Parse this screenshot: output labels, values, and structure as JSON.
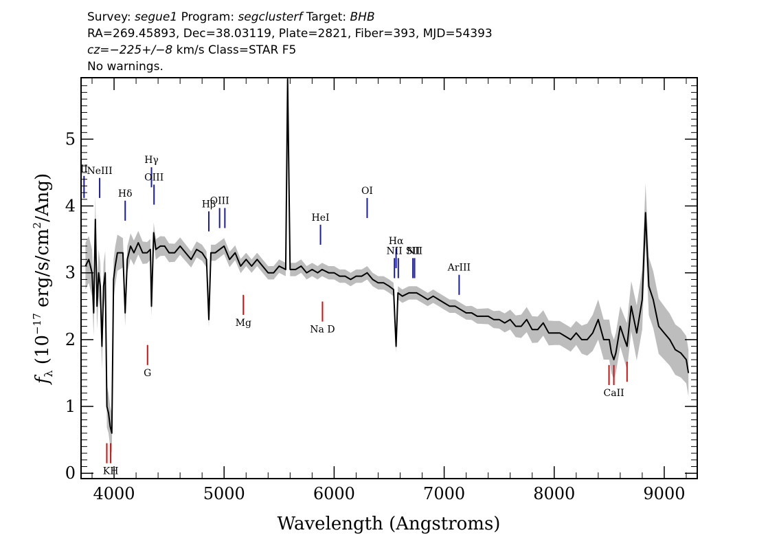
{
  "header": {
    "line1": {
      "survey_label": "Survey: ",
      "survey": "segue1",
      "program_label": " Program: ",
      "program": "segclusterf",
      "target_label": " Target: ",
      "target": "BHB"
    },
    "line2": "RA=269.45893, Dec=38.03119, Plate=2821, Fiber=393, MJD=54393",
    "line3": {
      "cz_label": "cz",
      "cz_value": "=−225+/−8",
      "cz_unit": " km/s Class=STAR F5"
    },
    "line4": "No warnings."
  },
  "colors": {
    "flux": "#000000",
    "error": "#bdbdbd",
    "emission": "#1a1aa8",
    "absorption": "#d01010",
    "axes": "#000000"
  },
  "chart_data": {
    "type": "line",
    "xlabel": "Wavelength (Angstroms)",
    "ylabel_symbol": "f",
    "ylabel_sub": "λ",
    "ylabel_rest": " (10",
    "ylabel_exp": "−17",
    "ylabel_unit": " erg/s/cm",
    "ylabel_exp2": "2",
    "ylabel_end": "/Ang)",
    "xlim": [
      3700,
      9300
    ],
    "ylim": [
      -0.08,
      5.92
    ],
    "grid": false,
    "x_ticks": [
      4000,
      5000,
      6000,
      7000,
      8000,
      9000
    ],
    "x_tick_labels": [
      "4000",
      "5000",
      "6000",
      "7000",
      "8000",
      "9000"
    ],
    "y_ticks": [
      0,
      1,
      2,
      3,
      4,
      5
    ],
    "y_tick_labels": [
      "0",
      "1",
      "2",
      "3",
      "4",
      "5"
    ],
    "series": [
      {
        "role": "flux",
        "x": [
          3740,
          3770,
          3800,
          3815,
          3830,
          3845,
          3860,
          3875,
          3890,
          3905,
          3920,
          3935,
          3950,
          3965,
          3980,
          3995,
          4010,
          4030,
          4050,
          4080,
          4101,
          4120,
          4150,
          4180,
          4220,
          4260,
          4300,
          4330,
          4340,
          4360,
          4380,
          4420,
          4460,
          4500,
          4550,
          4600,
          4650,
          4700,
          4750,
          4800,
          4840,
          4861,
          4880,
          4920,
          4960,
          5000,
          5050,
          5100,
          5150,
          5200,
          5250,
          5300,
          5350,
          5400,
          5450,
          5500,
          5560,
          5577,
          5600,
          5650,
          5700,
          5750,
          5800,
          5850,
          5890,
          5950,
          6000,
          6050,
          6100,
          6150,
          6200,
          6250,
          6300,
          6350,
          6400,
          6450,
          6500,
          6540,
          6563,
          6580,
          6620,
          6680,
          6750,
          6800,
          6850,
          6900,
          6950,
          7000,
          7050,
          7100,
          7150,
          7200,
          7250,
          7300,
          7350,
          7400,
          7450,
          7500,
          7550,
          7600,
          7650,
          7700,
          7750,
          7800,
          7850,
          7900,
          7950,
          8000,
          8050,
          8100,
          8150,
          8200,
          8250,
          8300,
          8350,
          8400,
          8450,
          8500,
          8520,
          8542,
          8560,
          8600,
          8640,
          8662,
          8700,
          8750,
          8800,
          8830,
          8860,
          8900,
          8950,
          9000,
          9050,
          9100,
          9150,
          9200,
          9220
        ],
        "y": [
          3.1,
          3.2,
          3.0,
          2.4,
          3.8,
          2.5,
          3.0,
          2.8,
          1.9,
          2.8,
          3.0,
          1.0,
          0.9,
          0.7,
          0.6,
          2.9,
          3.1,
          3.3,
          3.3,
          3.3,
          2.4,
          3.2,
          3.4,
          3.3,
          3.45,
          3.3,
          3.3,
          3.35,
          2.5,
          3.6,
          3.35,
          3.4,
          3.4,
          3.3,
          3.3,
          3.4,
          3.3,
          3.2,
          3.35,
          3.3,
          3.2,
          2.3,
          3.3,
          3.3,
          3.35,
          3.4,
          3.2,
          3.3,
          3.1,
          3.2,
          3.1,
          3.2,
          3.1,
          3.0,
          3.0,
          3.1,
          3.05,
          5.9,
          3.05,
          3.05,
          3.1,
          3.0,
          3.05,
          3.0,
          3.05,
          3.0,
          3.0,
          2.95,
          2.95,
          2.9,
          2.95,
          2.95,
          3.0,
          2.9,
          2.85,
          2.85,
          2.8,
          2.75,
          1.9,
          2.7,
          2.65,
          2.7,
          2.7,
          2.65,
          2.6,
          2.65,
          2.6,
          2.55,
          2.5,
          2.5,
          2.45,
          2.4,
          2.4,
          2.35,
          2.35,
          2.35,
          2.3,
          2.3,
          2.25,
          2.3,
          2.2,
          2.2,
          2.3,
          2.15,
          2.15,
          2.25,
          2.1,
          2.1,
          2.1,
          2.05,
          2.0,
          2.1,
          2.0,
          2.0,
          2.1,
          2.3,
          2.0,
          2.0,
          1.8,
          1.7,
          1.8,
          2.2,
          2.0,
          1.9,
          2.5,
          2.1,
          2.6,
          3.9,
          2.8,
          2.6,
          2.2,
          2.1,
          2.0,
          1.85,
          1.8,
          1.7,
          1.5
        ]
      },
      {
        "role": "error",
        "x": [
          3740,
          3800,
          3850,
          3900,
          3950,
          4000,
          4100,
          4200,
          4300,
          4400,
          4500,
          4600,
          4700,
          4800,
          4900,
          5000,
          5200,
          5400,
          5600,
          5800,
          6000,
          6200,
          6400,
          6600,
          6800,
          7000,
          7200,
          7400,
          7600,
          7800,
          8000,
          8200,
          8400,
          8600,
          8800,
          9000,
          9220
        ],
        "y": [
          0.35,
          0.35,
          0.35,
          0.35,
          0.3,
          0.3,
          0.2,
          0.18,
          0.16,
          0.15,
          0.14,
          0.13,
          0.12,
          0.12,
          0.12,
          0.12,
          0.1,
          0.1,
          0.1,
          0.1,
          0.1,
          0.1,
          0.1,
          0.1,
          0.1,
          0.1,
          0.1,
          0.12,
          0.15,
          0.2,
          0.18,
          0.18,
          0.3,
          0.3,
          0.45,
          0.4,
          0.35
        ]
      }
    ],
    "lines": [
      {
        "label": "II",
        "wave": 3727,
        "kind": "emission",
        "y0": 4.12,
        "y1": 4.45
      },
      {
        "label": "NeIII",
        "wave": 3869,
        "kind": "emission",
        "y0": 4.12,
        "y1": 4.42
      },
      {
        "label": "Hδ",
        "wave": 4101,
        "kind": "emission",
        "y0": 3.78,
        "y1": 4.08
      },
      {
        "label": "Hγ",
        "wave": 4340,
        "kind": "emission",
        "y0": 4.28,
        "y1": 4.58
      },
      {
        "label": "OIII",
        "wave": 4363,
        "kind": "emission",
        "y0": 4.02,
        "y1": 4.32
      },
      {
        "label": "Hβ",
        "wave": 4861,
        "kind": "emission",
        "y0": 3.62,
        "y1": 3.92
      },
      {
        "label": "OIII",
        "wave": 4959,
        "kind": "emission",
        "y0": 3.67,
        "y1": 3.97
      },
      {
        "label": "",
        "wave": 5007,
        "kind": "emission",
        "y0": 3.67,
        "y1": 3.97
      },
      {
        "label": "HeI",
        "wave": 5876,
        "kind": "emission",
        "y0": 3.42,
        "y1": 3.72
      },
      {
        "label": "OI",
        "wave": 6300,
        "kind": "emission",
        "y0": 3.82,
        "y1": 4.12
      },
      {
        "label": "NII",
        "wave": 6548,
        "kind": "emission",
        "y0": 2.92,
        "y1": 3.22
      },
      {
        "label": "Hα",
        "wave": 6563,
        "kind": "emission",
        "y0": 3.07,
        "y1": 3.37
      },
      {
        "label": "",
        "wave": 6583,
        "kind": "emission",
        "y0": 2.92,
        "y1": 3.22
      },
      {
        "label": "SII",
        "wave": 6716,
        "kind": "emission",
        "y0": 2.92,
        "y1": 3.22
      },
      {
        "label": "NII",
        "wave": 6731,
        "kind": "emission",
        "y0": 2.92,
        "y1": 3.22
      },
      {
        "label": "ArIII",
        "wave": 7136,
        "kind": "emission",
        "y0": 2.67,
        "y1": 2.97
      },
      {
        "label": "",
        "wave": 3934,
        "kind": "absorption",
        "y0": 0.15,
        "y1": 0.45
      },
      {
        "label": "KH",
        "wave": 3969,
        "kind": "absorption",
        "y0": 0.15,
        "y1": 0.45
      },
      {
        "label": "G",
        "wave": 4304,
        "kind": "absorption",
        "y0": 1.62,
        "y1": 1.92
      },
      {
        "label": "Mg",
        "wave": 5175,
        "kind": "absorption",
        "y0": 2.37,
        "y1": 2.67
      },
      {
        "label": "Na D",
        "wave": 5894,
        "kind": "absorption",
        "y0": 2.27,
        "y1": 2.57
      },
      {
        "label": "",
        "wave": 8498,
        "kind": "absorption",
        "y0": 1.32,
        "y1": 1.62
      },
      {
        "label": "CaII",
        "wave": 8542,
        "kind": "absorption",
        "y0": 1.32,
        "y1": 1.62
      },
      {
        "label": "",
        "wave": 8662,
        "kind": "absorption",
        "y0": 1.37,
        "y1": 1.67
      }
    ]
  }
}
